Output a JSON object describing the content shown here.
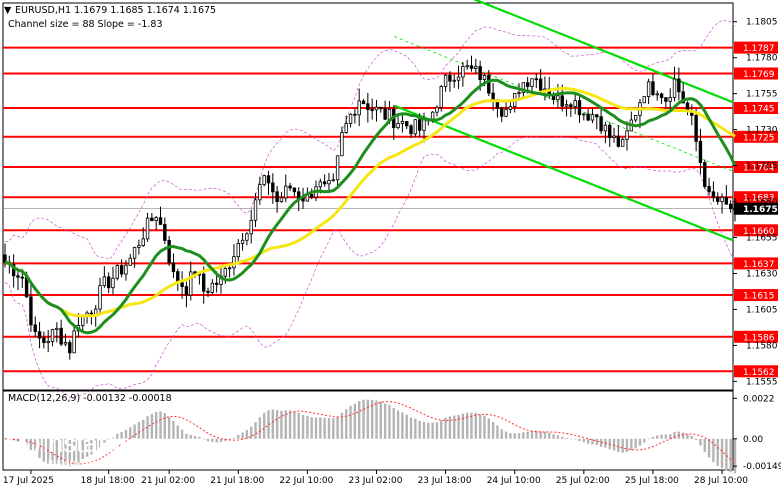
{
  "header": {
    "symbol_line": "EURUSD,H1  1.1679 1.1685 1.1674 1.1675",
    "channel_line": "Channel size = 88 Slope = -1.83"
  },
  "macd": {
    "label": "MACD(12,26,9) -0.00132 -0.00018",
    "ticks": [
      {
        "v": 0.0022,
        "t": "0.0022"
      },
      {
        "v": 0.0,
        "t": "0.00"
      },
      {
        "v": -0.00149,
        "t": "-0.00149"
      }
    ],
    "range": [
      -0.0017,
      0.0026
    ]
  },
  "watermark": {
    "brand": "instaforex",
    "tagline": "Instant Forex Trading"
  },
  "colors": {
    "level": "#ff0000",
    "ma_fast": "#1e8f1e",
    "ma_slow": "#f5e614",
    "channel": "#00dd00",
    "candle": "#000000",
    "macd_hist": "#b4b4b4",
    "macd_signal": "#ff3030",
    "bollinger": "#cc55cc"
  },
  "chart_data": {
    "type": "candlestick",
    "timeframe": "H1",
    "symbol": "EURUSD",
    "ylim": [
      1.1549,
      1.1818
    ],
    "price_ticks": [
      {
        "v": 1.1805,
        "t": "1.1805"
      },
      {
        "v": 1.178,
        "t": "1.1780"
      },
      {
        "v": 1.1755,
        "t": "1.1755"
      },
      {
        "v": 1.173,
        "t": "1.1730"
      },
      {
        "v": 1.1705,
        "t": "1.1705"
      },
      {
        "v": 1.168,
        "t": "1.1680"
      },
      {
        "v": 1.1655,
        "t": "1.1655"
      },
      {
        "v": 1.163,
        "t": "1.1630"
      },
      {
        "v": 1.1605,
        "t": "1.1605"
      },
      {
        "v": 1.158,
        "t": "1.1580"
      },
      {
        "v": 1.1555,
        "t": "1.1555"
      }
    ],
    "levels": [
      {
        "v": 1.1787,
        "t": "1.1787"
      },
      {
        "v": 1.1769,
        "t": "1.1769"
      },
      {
        "v": 1.1745,
        "t": "1.1745"
      },
      {
        "v": 1.1725,
        "t": "1.1725"
      },
      {
        "v": 1.1704,
        "t": "1.1704"
      },
      {
        "v": 1.1683,
        "t": "1.1683"
      },
      {
        "v": 1.166,
        "t": "1.1660"
      },
      {
        "v": 1.1637,
        "t": "1.1637"
      },
      {
        "v": 1.1615,
        "t": "1.1615"
      },
      {
        "v": 1.1586,
        "t": "1.1586"
      },
      {
        "v": 1.1562,
        "t": "1.1562"
      }
    ],
    "current_price": {
      "v": 1.1675,
      "t": "1.1675"
    },
    "x_labels": [
      {
        "i": 6,
        "t": "17 Jul 2025"
      },
      {
        "i": 24,
        "t": "18 Jul 18:00"
      },
      {
        "i": 38,
        "t": "21 Jul 02:00"
      },
      {
        "i": 54,
        "t": "21 Jul 18:00"
      },
      {
        "i": 70,
        "t": "22 Jul 10:00"
      },
      {
        "i": 86,
        "t": "23 Jul 02:00"
      },
      {
        "i": 102,
        "t": "23 Jul 18:00"
      },
      {
        "i": 118,
        "t": "24 Jul 10:00"
      },
      {
        "i": 134,
        "t": "25 Jul 02:00"
      },
      {
        "i": 150,
        "t": "25 Jul 18:00"
      },
      {
        "i": 166,
        "t": "28 Jul 10:00"
      }
    ],
    "n_bars": 170,
    "key_closes": [
      [
        0,
        1.1638
      ],
      [
        4,
        1.1628
      ],
      [
        7,
        1.1585
      ],
      [
        9,
        1.1583
      ],
      [
        12,
        1.159
      ],
      [
        15,
        1.1578
      ],
      [
        17,
        1.1598
      ],
      [
        20,
        1.1605
      ],
      [
        23,
        1.1622
      ],
      [
        26,
        1.163
      ],
      [
        29,
        1.164
      ],
      [
        32,
        1.1658
      ],
      [
        35,
        1.1672
      ],
      [
        37,
        1.1655
      ],
      [
        39,
        1.1628
      ],
      [
        42,
        1.162
      ],
      [
        44,
        1.1632
      ],
      [
        46,
        1.1618
      ],
      [
        48,
        1.1622
      ],
      [
        50,
        1.1625
      ],
      [
        53,
        1.1645
      ],
      [
        55,
        1.1658
      ],
      [
        57,
        1.1668
      ],
      [
        59,
        1.169
      ],
      [
        61,
        1.1695
      ],
      [
        63,
        1.168
      ],
      [
        66,
        1.169
      ],
      [
        68,
        1.1685
      ],
      [
        70,
        1.1682
      ],
      [
        72,
        1.1693
      ],
      [
        74,
        1.1688
      ],
      [
        76,
        1.169
      ],
      [
        78,
        1.1725
      ],
      [
        80,
        1.174
      ],
      [
        82,
        1.1752
      ],
      [
        85,
        1.1745
      ],
      [
        88,
        1.174
      ],
      [
        91,
        1.1736
      ],
      [
        94,
        1.1732
      ],
      [
        96,
        1.173
      ],
      [
        98,
        1.1735
      ],
      [
        100,
        1.175
      ],
      [
        102,
        1.1763
      ],
      [
        104,
        1.177
      ],
      [
        107,
        1.1772
      ],
      [
        110,
        1.1768
      ],
      [
        113,
        1.1755
      ],
      [
        115,
        1.1745
      ],
      [
        117,
        1.1742
      ],
      [
        119,
        1.176
      ],
      [
        122,
        1.1768
      ],
      [
        125,
        1.176
      ],
      [
        128,
        1.175
      ],
      [
        131,
        1.1752
      ],
      [
        134,
        1.1742
      ],
      [
        137,
        1.174
      ],
      [
        140,
        1.1725
      ],
      [
        143,
        1.1718
      ],
      [
        145,
        1.1735
      ],
      [
        148,
        1.1758
      ],
      [
        151,
        1.176
      ],
      [
        153,
        1.1752
      ],
      [
        155,
        1.1764
      ],
      [
        157,
        1.175
      ],
      [
        159,
        1.1735
      ],
      [
        161,
        1.1708
      ],
      [
        163,
        1.1682
      ],
      [
        165,
        1.168
      ],
      [
        167,
        1.1676
      ],
      [
        169,
        1.1675
      ]
    ],
    "last_candle": {
      "open": 1.1679,
      "high": 1.1685,
      "low": 1.1674,
      "close": 1.1675
    },
    "channel": {
      "size": 88,
      "slope": -1.83
    }
  }
}
